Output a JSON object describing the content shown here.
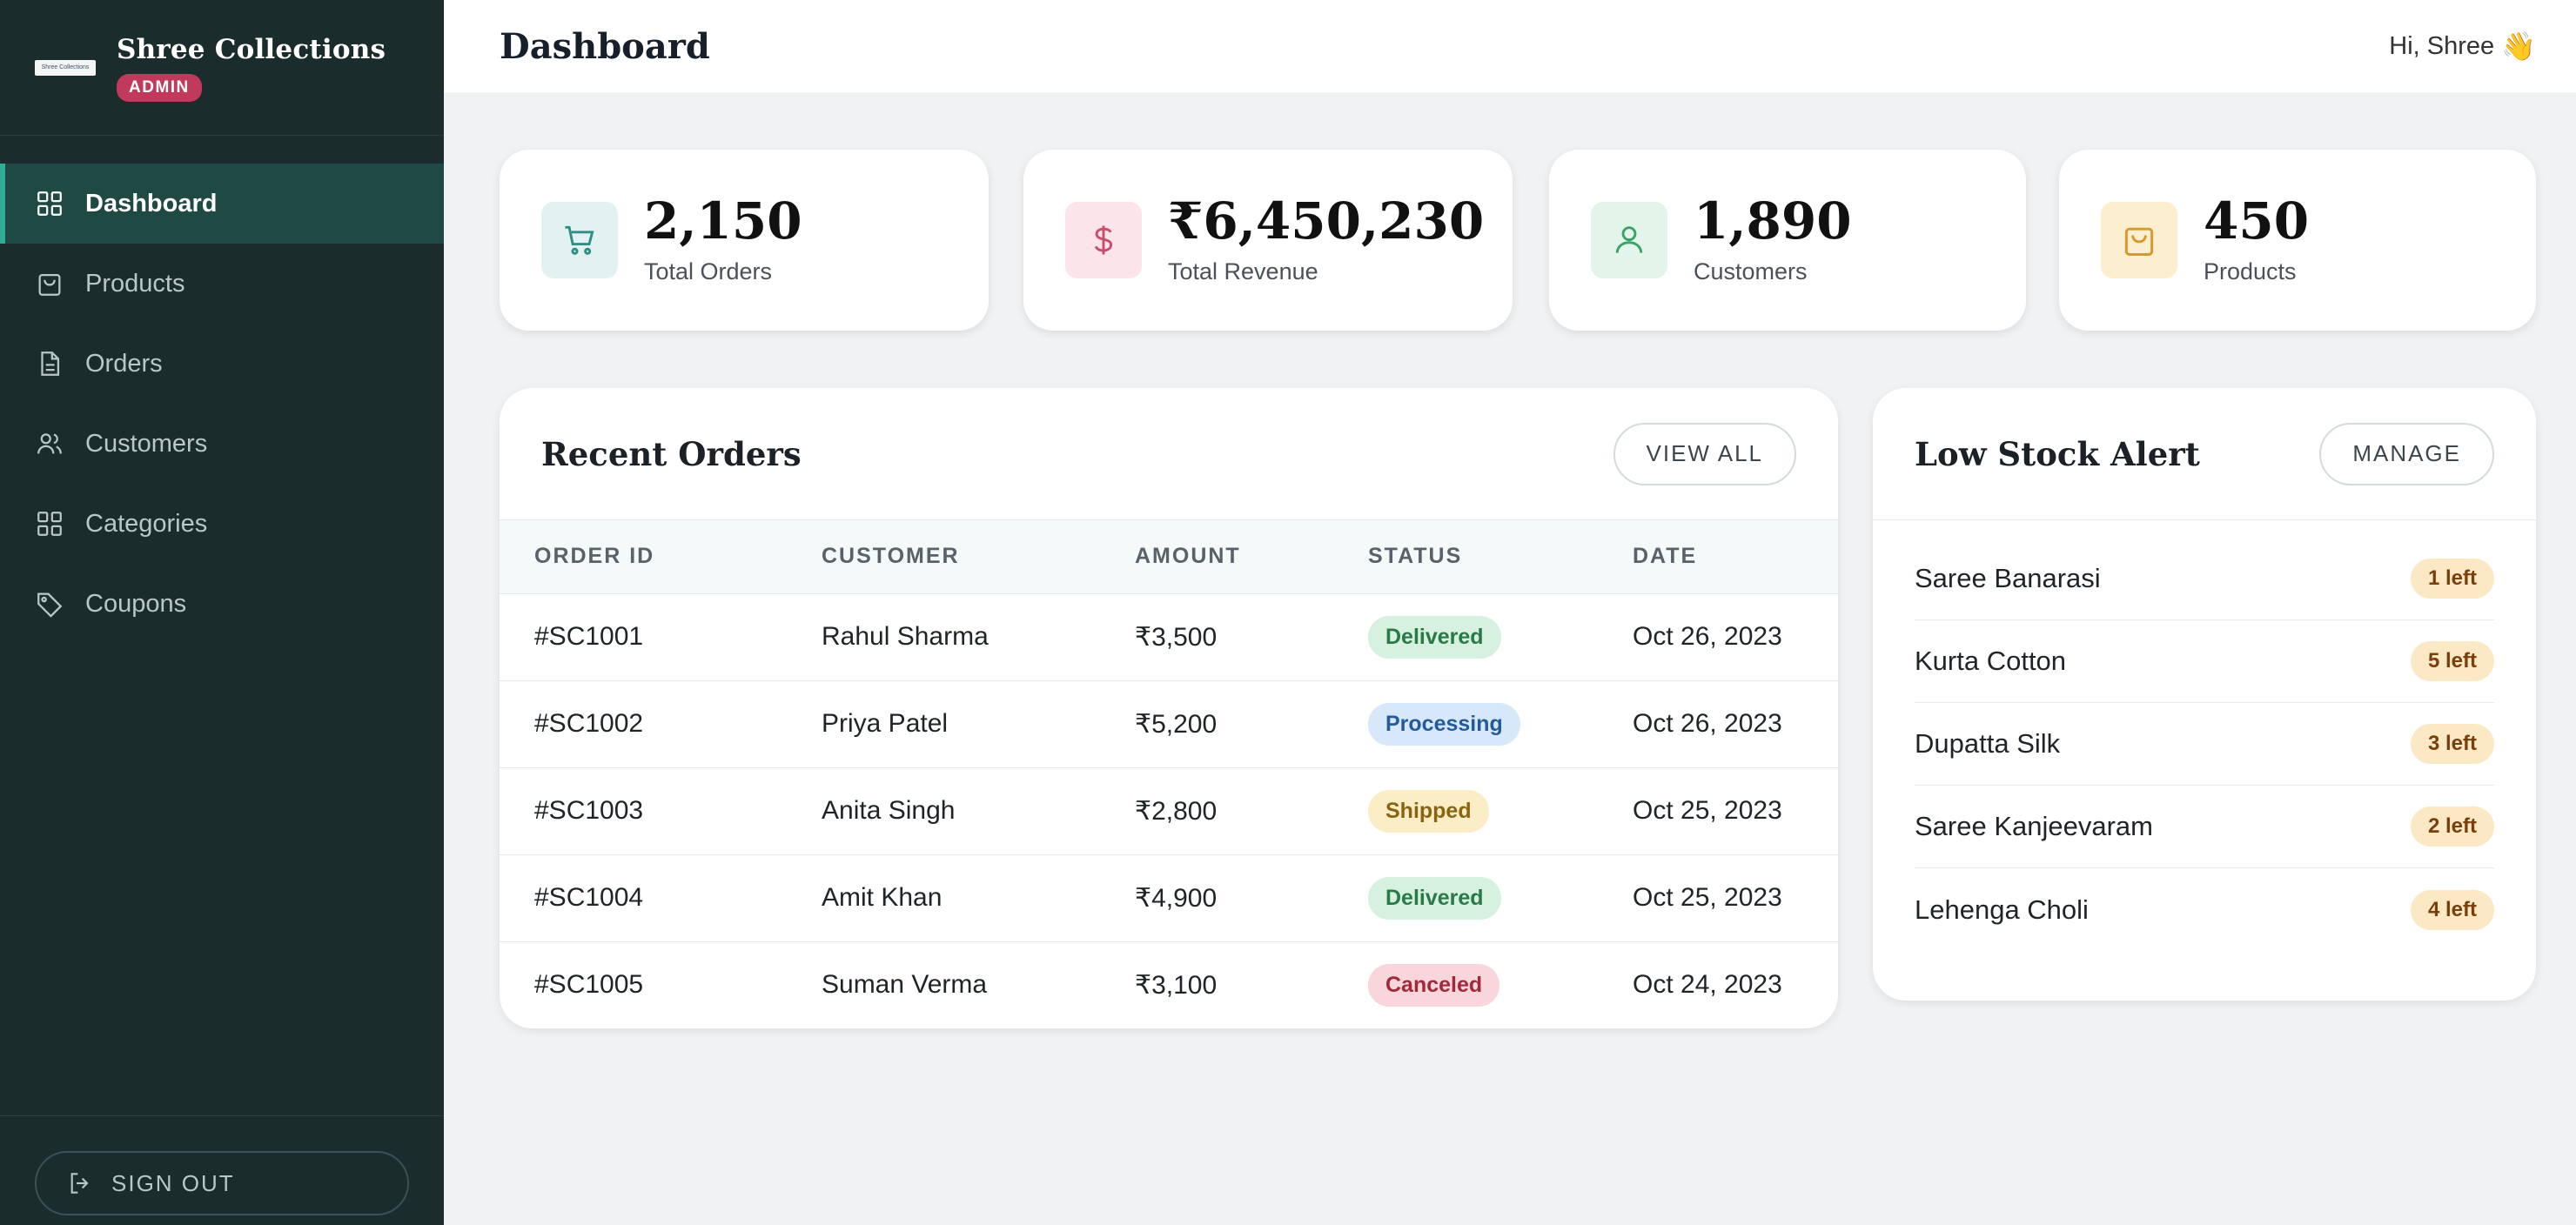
{
  "brand": {
    "name": "Shree Collections",
    "logo_text": "Shree Collections",
    "badge": "ADMIN"
  },
  "sidebar": {
    "items": [
      {
        "label": "Dashboard",
        "icon": "grid-icon",
        "active": true
      },
      {
        "label": "Products",
        "icon": "bag-icon",
        "active": false
      },
      {
        "label": "Orders",
        "icon": "document-icon",
        "active": false
      },
      {
        "label": "Customers",
        "icon": "users-icon",
        "active": false
      },
      {
        "label": "Categories",
        "icon": "grid-icon",
        "active": false
      },
      {
        "label": "Coupons",
        "icon": "tag-icon",
        "active": false
      }
    ],
    "signout": "SIGN OUT"
  },
  "header": {
    "title": "Dashboard",
    "greeting": "Hi, Shree",
    "wave": "👋"
  },
  "stats": [
    {
      "value": "2,150",
      "label": "Total Orders",
      "icon": "cart-icon",
      "color": "#2f8f86",
      "bg": "#e2f2f1"
    },
    {
      "value": "₹6,450,230",
      "label": "Total Revenue",
      "icon": "dollar-icon",
      "color": "#c94d6c",
      "bg": "#fbe4ea"
    },
    {
      "value": "1,890",
      "label": "Customers",
      "icon": "user-icon",
      "color": "#3aa468",
      "bg": "#e3f5ea"
    },
    {
      "value": "450",
      "label": "Products",
      "icon": "bag-icon",
      "color": "#d6982a",
      "bg": "#fcefd0"
    }
  ],
  "recent_orders": {
    "title": "Recent Orders",
    "button": "VIEW ALL",
    "columns": [
      "ORDER ID",
      "CUSTOMER",
      "AMOUNT",
      "STATUS",
      "DATE"
    ],
    "rows": [
      {
        "id": "#SC1001",
        "customer": "Rahul Sharma",
        "amount": "₹3,500",
        "status": "Delivered",
        "date": "Oct 26, 2023"
      },
      {
        "id": "#SC1002",
        "customer": "Priya Patel",
        "amount": "₹5,200",
        "status": "Processing",
        "date": "Oct 26, 2023"
      },
      {
        "id": "#SC1003",
        "customer": "Anita Singh",
        "amount": "₹2,800",
        "status": "Shipped",
        "date": "Oct 25, 2023"
      },
      {
        "id": "#SC1004",
        "customer": "Amit Khan",
        "amount": "₹4,900",
        "status": "Delivered",
        "date": "Oct 25, 2023"
      },
      {
        "id": "#SC1005",
        "customer": "Suman Verma",
        "amount": "₹3,100",
        "status": "Canceled",
        "date": "Oct 24, 2023"
      }
    ]
  },
  "low_stock": {
    "title": "Low Stock Alert",
    "button": "MANAGE",
    "items": [
      {
        "name": "Saree Banarasi",
        "badge": "1 left"
      },
      {
        "name": "Kurta Cotton",
        "badge": "5 left"
      },
      {
        "name": "Dupatta Silk",
        "badge": "3 left"
      },
      {
        "name": "Saree Kanjeevaram",
        "badge": "2 left"
      },
      {
        "name": "Lehenga Choli",
        "badge": "4 left"
      }
    ]
  }
}
